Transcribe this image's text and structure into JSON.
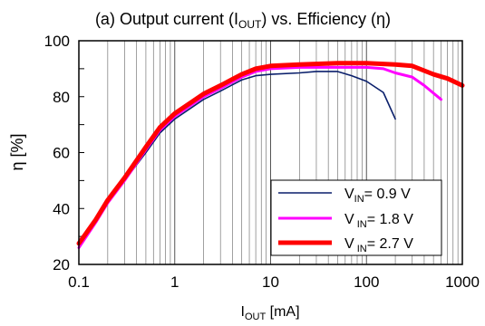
{
  "chart_data": {
    "type": "line",
    "title": {
      "prefix": "(a) Output current (I",
      "sub": "OUT",
      "suffix": ") vs. Efficiency (η)"
    },
    "xlabel": {
      "main": "I",
      "sub": "OUT",
      "rest": " [mA]"
    },
    "ylabel": "η [%]",
    "x_scale": "log",
    "xlim": [
      0.1,
      1000
    ],
    "ylim": [
      20,
      100
    ],
    "x_ticks": [
      {
        "value": 0.1,
        "label": "0.1"
      },
      {
        "value": 1,
        "label": "1"
      },
      {
        "value": 10,
        "label": "10"
      },
      {
        "value": 100,
        "label": "100"
      },
      {
        "value": 1000,
        "label": "1000"
      }
    ],
    "y_ticks": [
      {
        "value": 20,
        "label": "20"
      },
      {
        "value": 40,
        "label": "40"
      },
      {
        "value": 60,
        "label": "60"
      },
      {
        "value": 80,
        "label": "80"
      },
      {
        "value": 100,
        "label": "100"
      }
    ],
    "grid": {
      "x_major_minor": true,
      "y_minor_ticks_every": 10
    },
    "legend_position": "bottom-right",
    "series": [
      {
        "name": {
          "main": "V",
          "sub": "IN",
          "rest": "= 0.9 V"
        },
        "color": "#0a1f6b",
        "line_width": 1.6,
        "points": [
          [
            0.1,
            27
          ],
          [
            0.15,
            35
          ],
          [
            0.2,
            42
          ],
          [
            0.3,
            50
          ],
          [
            0.5,
            60
          ],
          [
            0.7,
            67
          ],
          [
            1,
            72
          ],
          [
            2,
            79
          ],
          [
            3,
            82
          ],
          [
            5,
            86
          ],
          [
            7,
            87.5
          ],
          [
            10,
            88
          ],
          [
            20,
            88.5
          ],
          [
            30,
            89
          ],
          [
            50,
            89
          ],
          [
            70,
            87.5
          ],
          [
            100,
            85.5
          ],
          [
            150,
            81.5
          ],
          [
            200,
            72
          ]
        ]
      },
      {
        "name": {
          "main": "V",
          "sub": " IN",
          "rest": "= 1.8 V"
        },
        "color": "#ff00ff",
        "line_width": 3,
        "points": [
          [
            0.1,
            26
          ],
          [
            0.15,
            35
          ],
          [
            0.2,
            42
          ],
          [
            0.3,
            50
          ],
          [
            0.5,
            61
          ],
          [
            0.7,
            68
          ],
          [
            1,
            73
          ],
          [
            2,
            80
          ],
          [
            3,
            83
          ],
          [
            5,
            87
          ],
          [
            7,
            89
          ],
          [
            10,
            90
          ],
          [
            20,
            90.5
          ],
          [
            50,
            90.5
          ],
          [
            100,
            90.5
          ],
          [
            150,
            90
          ],
          [
            200,
            88.5
          ],
          [
            300,
            87
          ],
          [
            400,
            84
          ],
          [
            600,
            79
          ]
        ]
      },
      {
        "name": {
          "main": "V",
          "sub": " IN",
          "rest": "= 2.7 V"
        },
        "color": "#ff0000",
        "line_width": 5,
        "points": [
          [
            0.1,
            27.5
          ],
          [
            0.15,
            36
          ],
          [
            0.2,
            43
          ],
          [
            0.3,
            51
          ],
          [
            0.5,
            62
          ],
          [
            0.7,
            69
          ],
          [
            1,
            74
          ],
          [
            2,
            81
          ],
          [
            3,
            84
          ],
          [
            5,
            88
          ],
          [
            7,
            90
          ],
          [
            10,
            91
          ],
          [
            20,
            91.5
          ],
          [
            50,
            92
          ],
          [
            100,
            92
          ],
          [
            200,
            91.5
          ],
          [
            300,
            91
          ],
          [
            500,
            88
          ],
          [
            700,
            86.5
          ],
          [
            1000,
            84
          ]
        ]
      }
    ]
  }
}
